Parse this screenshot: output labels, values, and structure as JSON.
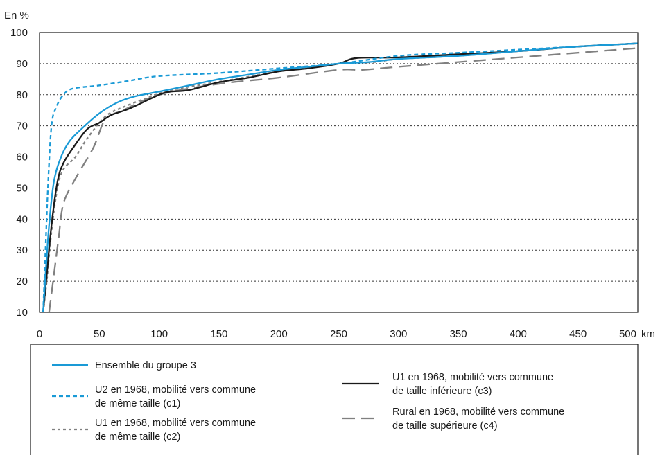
{
  "chart_data": {
    "type": "line",
    "y_unit_label": "En %",
    "x_unit_label": "km",
    "xlim": [
      0,
      500
    ],
    "ylim": [
      10,
      100
    ],
    "x_ticks": [
      0,
      50,
      100,
      150,
      200,
      250,
      300,
      350,
      400,
      450,
      500
    ],
    "y_ticks": [
      10,
      20,
      30,
      40,
      50,
      60,
      70,
      80,
      90,
      100
    ],
    "grid": "horizontal dotted",
    "legend_position": "bottom",
    "series": [
      {
        "name": "Ensemble du groupe 3",
        "color": "#1a9ad6",
        "style": "solid",
        "points": [
          [
            3,
            10
          ],
          [
            5,
            22
          ],
          [
            8,
            38
          ],
          [
            12,
            52
          ],
          [
            18,
            60
          ],
          [
            25,
            65
          ],
          [
            35,
            69
          ],
          [
            50,
            74
          ],
          [
            65,
            77.5
          ],
          [
            80,
            79.5
          ],
          [
            100,
            81
          ],
          [
            125,
            83
          ],
          [
            150,
            85
          ],
          [
            175,
            86.5
          ],
          [
            200,
            88
          ],
          [
            225,
            89
          ],
          [
            250,
            90
          ],
          [
            275,
            90.5
          ],
          [
            300,
            91.5
          ],
          [
            350,
            92.5
          ],
          [
            400,
            94
          ],
          [
            450,
            95.5
          ],
          [
            500,
            96.5
          ]
        ]
      },
      {
        "name": "U2 en 1968, mobilité vers commune de même taille (c1)",
        "color": "#1a9ad6",
        "style": "short-dash",
        "points": [
          [
            3,
            10
          ],
          [
            5,
            30
          ],
          [
            7,
            50
          ],
          [
            10,
            70
          ],
          [
            14,
            76
          ],
          [
            20,
            80
          ],
          [
            28,
            82
          ],
          [
            50,
            83
          ],
          [
            75,
            84.5
          ],
          [
            100,
            86
          ],
          [
            150,
            87
          ],
          [
            200,
            88.5
          ],
          [
            250,
            90
          ],
          [
            300,
            92.5
          ],
          [
            350,
            93.5
          ],
          [
            400,
            94.5
          ],
          [
            450,
            95.5
          ],
          [
            500,
            96.5
          ]
        ]
      },
      {
        "name": "U1 en 1968, mobilité vers commune de même taille (c2)",
        "color": "#808080",
        "style": "dot",
        "points": [
          [
            3,
            10
          ],
          [
            6,
            20
          ],
          [
            10,
            36
          ],
          [
            15,
            50
          ],
          [
            20,
            56
          ],
          [
            30,
            60
          ],
          [
            40,
            66
          ],
          [
            55,
            73
          ],
          [
            70,
            76
          ],
          [
            90,
            79
          ],
          [
            110,
            81.5
          ],
          [
            140,
            83.5
          ],
          [
            170,
            85.5
          ],
          [
            200,
            87.5
          ],
          [
            250,
            90
          ],
          [
            280,
            90.5
          ],
          [
            300,
            91.5
          ],
          [
            350,
            92.5
          ],
          [
            400,
            94
          ],
          [
            450,
            95.5
          ],
          [
            500,
            96.5
          ]
        ]
      },
      {
        "name": "U1 en 1968, mobilité vers commune de taille inférieure (c3)",
        "color": "#1a1a1a",
        "style": "solid",
        "points": [
          [
            3,
            10
          ],
          [
            6,
            22
          ],
          [
            10,
            38
          ],
          [
            15,
            52
          ],
          [
            20,
            58
          ],
          [
            30,
            64
          ],
          [
            40,
            69
          ],
          [
            50,
            71
          ],
          [
            60,
            73.5
          ],
          [
            75,
            75.5
          ],
          [
            100,
            80
          ],
          [
            110,
            81
          ],
          [
            125,
            81.5
          ],
          [
            150,
            84
          ],
          [
            175,
            85.5
          ],
          [
            200,
            87.5
          ],
          [
            225,
            88.5
          ],
          [
            250,
            90
          ],
          [
            265,
            91.8
          ],
          [
            300,
            92
          ],
          [
            350,
            93
          ],
          [
            400,
            94
          ],
          [
            450,
            95.5
          ],
          [
            500,
            96.5
          ]
        ]
      },
      {
        "name": "Rural en 1968, mobilité vers commune de taille supérieure (c4)",
        "color": "#808080",
        "style": "long-dash",
        "points": [
          [
            8,
            10
          ],
          [
            12,
            22
          ],
          [
            16,
            34
          ],
          [
            20,
            45
          ],
          [
            30,
            53
          ],
          [
            45,
            63
          ],
          [
            55,
            72
          ],
          [
            70,
            75
          ],
          [
            100,
            80
          ],
          [
            150,
            83.5
          ],
          [
            200,
            85.5
          ],
          [
            250,
            88
          ],
          [
            270,
            88
          ],
          [
            300,
            89
          ],
          [
            350,
            90.5
          ],
          [
            400,
            92
          ],
          [
            450,
            93.5
          ],
          [
            500,
            95
          ]
        ]
      }
    ]
  },
  "legend": {
    "left": [
      {
        "series": 0,
        "lines": [
          "Ensemble du groupe 3"
        ]
      },
      {
        "series": 1,
        "lines": [
          "U2 en 1968, mobilité vers commune",
          "de même taille (c1)"
        ]
      },
      {
        "series": 2,
        "lines": [
          "U1 en 1968, mobilité vers commune",
          "de même taille (c2)"
        ]
      }
    ],
    "right": [
      {
        "series": 3,
        "lines": [
          "U1 en 1968, mobilité vers commune",
          "de taille inférieure (c3)"
        ]
      },
      {
        "series": 4,
        "lines": [
          "Rural en 1968, mobilité vers commune",
          "de taille supérieure (c4)"
        ]
      }
    ]
  }
}
